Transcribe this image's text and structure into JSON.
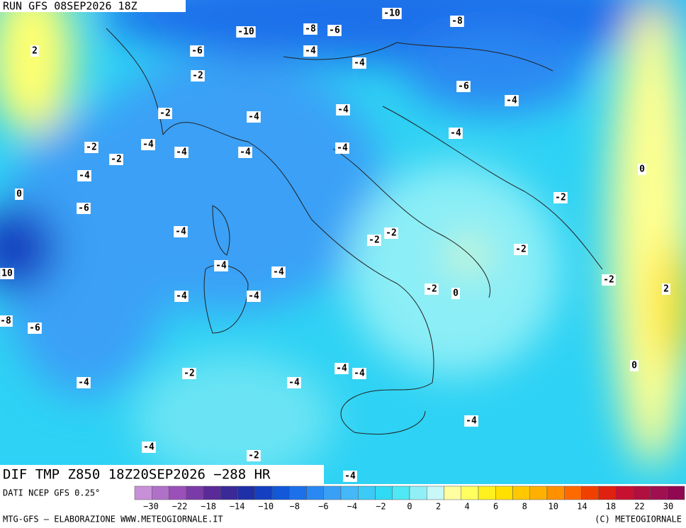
{
  "header": {
    "run": "RUN GFS 08SEP2026 18Z"
  },
  "map": {
    "contour_labels": [
      "2",
      "-10",
      "-8",
      "-6",
      "-10",
      "-8",
      "-6",
      "-4",
      "-4",
      "-2",
      "-6",
      "-4",
      "-2",
      "-4",
      "-4",
      "-4",
      "-2",
      "-2",
      "-4",
      "-4",
      "-4",
      "-4",
      "-4",
      "0",
      "0",
      "-2",
      "-6",
      "-4",
      "-2",
      "-2",
      "-2",
      "-4",
      "-4",
      "-2",
      "10",
      "-4",
      "-4",
      "-2",
      "0",
      "2",
      "-8",
      "-6",
      "-4",
      "-4",
      "-2",
      "0",
      "-4",
      "-4",
      "-4",
      "-4",
      "-2",
      "-4"
    ]
  },
  "footer": {
    "title": "DIF TMP Z850 18Z20SEP2026 −288 HR",
    "source": "DATI NCEP GFS 0.25°",
    "credit_left": "MTG-GFS — ELABORAZIONE WWW.METEOGIORNALE.IT",
    "credit_right": "(C) METEOGIORNALE"
  },
  "legend": {
    "colors": [
      "#c890d8",
      "#b070c8",
      "#9a50b8",
      "#7a3aa8",
      "#5a2a98",
      "#3a2a98",
      "#1f2fa8",
      "#1440c0",
      "#1258d8",
      "#1c70ea",
      "#2a88f2",
      "#3aa0f6",
      "#44b8f8",
      "#3ccaf6",
      "#30daf4",
      "#50e8f4",
      "#90f0f6",
      "#c8f8f8",
      "#ffffa0",
      "#ffff60",
      "#fff020",
      "#ffe000",
      "#ffc800",
      "#ffb000",
      "#ff9000",
      "#ff6a00",
      "#f04000",
      "#e02010",
      "#c81030",
      "#b01040",
      "#a01050",
      "#900850"
    ],
    "labels": [
      "−30",
      "−22",
      "−18",
      "−14",
      "−10",
      "−8",
      "−6",
      "−4",
      "−2",
      "0",
      "2",
      "4",
      "6",
      "8",
      "10",
      "14",
      "18",
      "22",
      "30"
    ]
  }
}
